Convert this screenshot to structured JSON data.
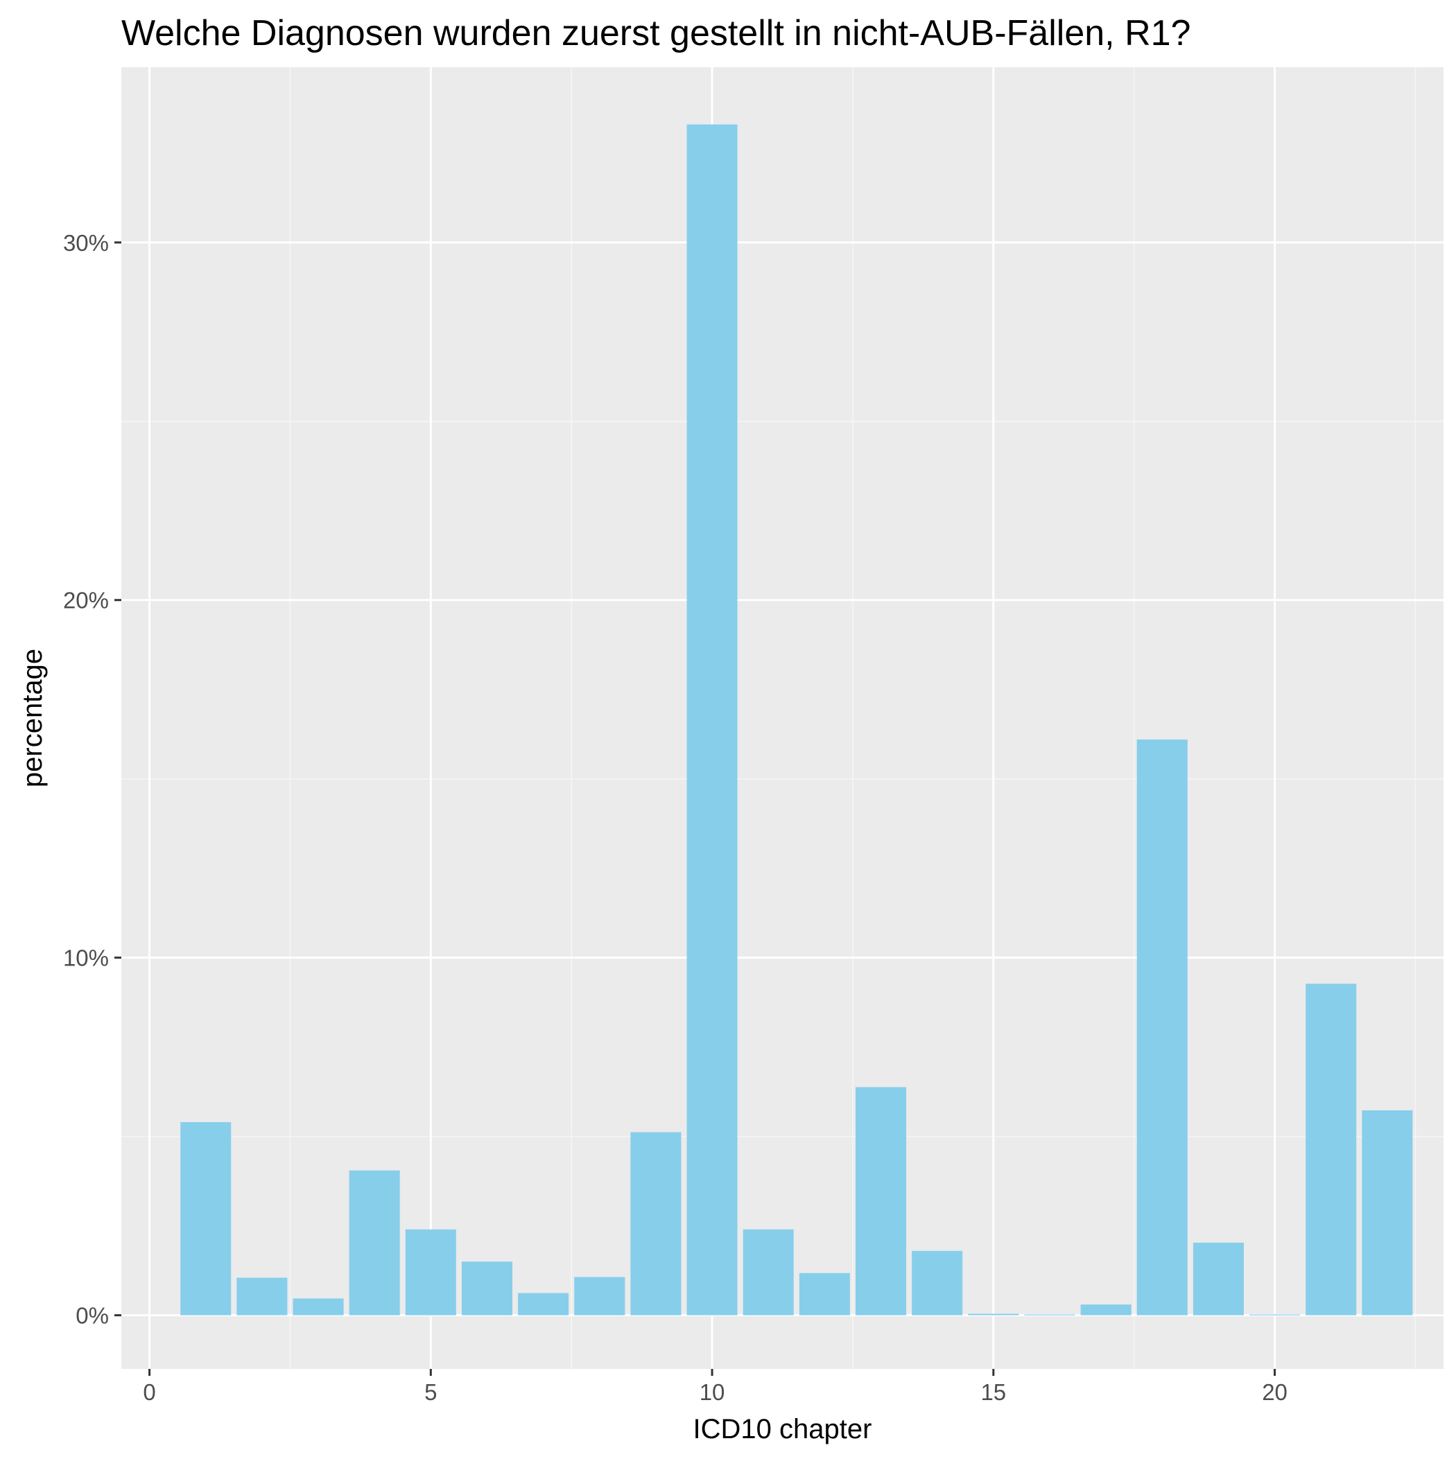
{
  "chart_data": {
    "type": "bar",
    "title": "Welche Diagnosen wurden zuerst gestellt in nicht-AUB-Fällen, R1?",
    "xlabel": "ICD10 chapter",
    "ylabel": "percentage",
    "x": [
      1,
      2,
      3,
      4,
      5,
      6,
      7,
      8,
      9,
      10,
      11,
      12,
      13,
      14,
      15,
      16,
      17,
      18,
      19,
      20,
      21,
      22
    ],
    "values": [
      5.4,
      1.05,
      0.47,
      4.05,
      2.4,
      1.5,
      0.62,
      1.07,
      5.12,
      33.3,
      2.4,
      1.18,
      6.38,
      1.8,
      0.04,
      0.02,
      0.3,
      16.1,
      2.03,
      0.02,
      9.27,
      5.73
    ],
    "xlim": [
      -0.5,
      23
    ],
    "ylim": [
      -1.5,
      34.9
    ],
    "x_ticks": [
      0,
      5,
      10,
      15,
      20
    ],
    "x_tick_labels": [
      "0",
      "5",
      "10",
      "15",
      "20"
    ],
    "y_ticks": [
      0,
      10,
      20,
      30
    ],
    "y_tick_labels": [
      "0%",
      "10%",
      "20%",
      "30%"
    ],
    "grid": true,
    "legend": "none",
    "colors": {
      "bar": "#87ceeb",
      "panel": "#ebebeb",
      "grid_major": "#ffffff",
      "grid_minor": "#f5f5f5",
      "tick": "#333333"
    }
  }
}
